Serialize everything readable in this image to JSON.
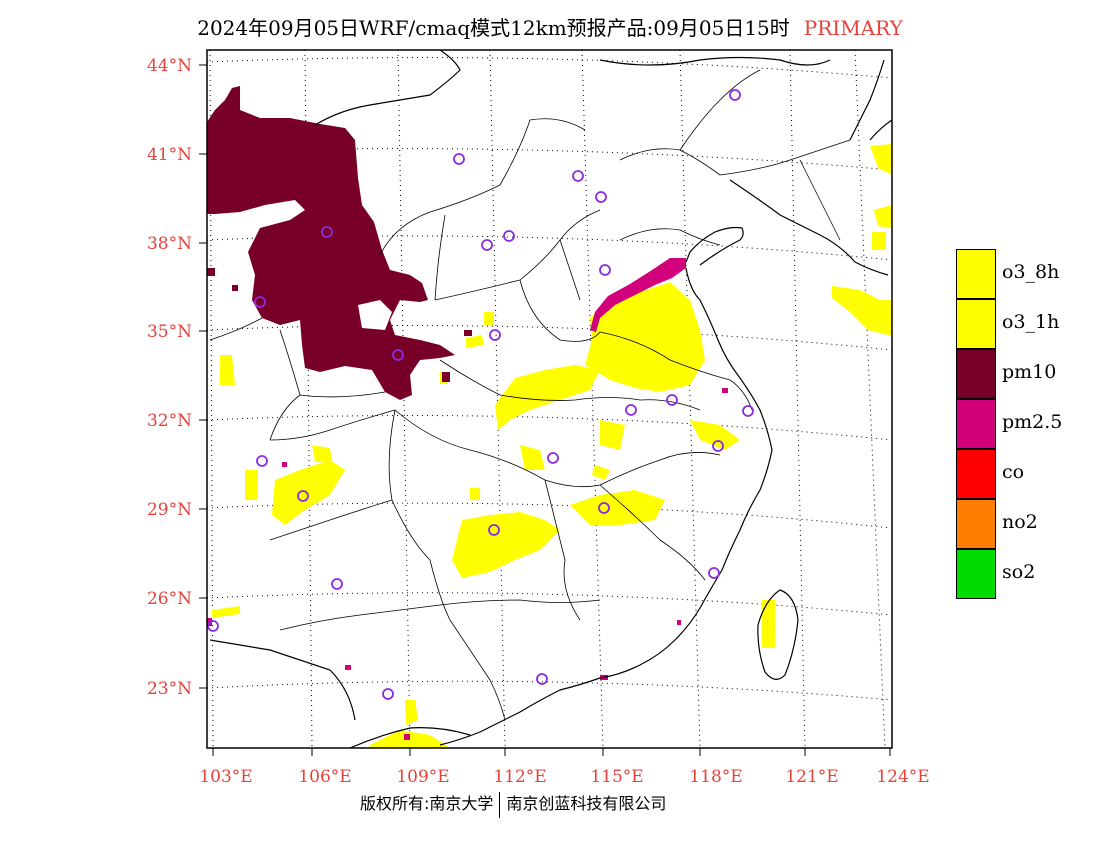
{
  "title": {
    "text": "2024年09月05日WRF/cmaq模式12km预报产品:09月05日15时",
    "tag": "PRIMARY"
  },
  "axes": {
    "lat_labels": [
      "44°N",
      "41°N",
      "38°N",
      "35°N",
      "32°N",
      "29°N",
      "26°N",
      "23°N"
    ],
    "lon_labels": [
      "103°E",
      "106°E",
      "109°E",
      "112°E",
      "115°E",
      "118°E",
      "121°E",
      "124°E"
    ],
    "label_color": "#e8403a"
  },
  "legend": {
    "items": [
      {
        "label": "o3_8h",
        "color": "#ffff00"
      },
      {
        "label": "o3_1h",
        "color": "#ffff00"
      },
      {
        "label": "pm10",
        "color": "#780028"
      },
      {
        "label": "pm2.5",
        "color": "#d2007a"
      },
      {
        "label": "co",
        "color": "#ff0000"
      },
      {
        "label": "no2",
        "color": "#ff7d00"
      },
      {
        "label": "so2",
        "color": "#00dc00"
      }
    ]
  },
  "stations": {
    "marker": "circle",
    "color": "#8a2be2"
  },
  "copyright": {
    "left": "版权所有:南京大学",
    "right": "南京创蓝科技有限公司"
  }
}
